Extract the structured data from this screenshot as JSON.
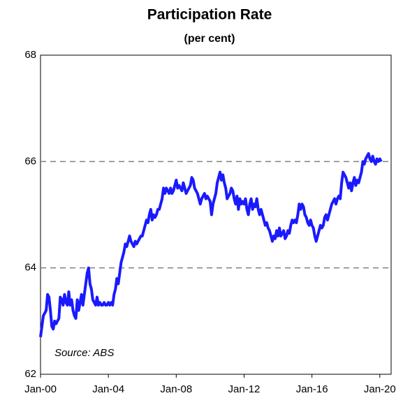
{
  "chart_data": {
    "type": "line",
    "title": "Participation Rate",
    "subtitle": "(per cent)",
    "annotation": "Source: ABS",
    "color": "#1a1aff",
    "grid": true,
    "ylim": [
      62,
      68
    ],
    "yticks": [
      62,
      64,
      66,
      68
    ],
    "xlim": [
      "2000-01",
      "2020-09"
    ],
    "xticks": [
      {
        "value": "2000-01",
        "label": "Jan-00"
      },
      {
        "value": "2004-01",
        "label": "Jan-04"
      },
      {
        "value": "2008-01",
        "label": "Jan-08"
      },
      {
        "value": "2012-01",
        "label": "Jan-12"
      },
      {
        "value": "2016-01",
        "label": "Jan-16"
      },
      {
        "value": "2020-01",
        "label": "Jan-20"
      }
    ],
    "x": [
      "2000-01",
      "2000-02",
      "2000-03",
      "2000-04",
      "2000-05",
      "2000-06",
      "2000-07",
      "2000-08",
      "2000-09",
      "2000-10",
      "2000-11",
      "2000-12",
      "2001-01",
      "2001-02",
      "2001-03",
      "2001-04",
      "2001-05",
      "2001-06",
      "2001-07",
      "2001-08",
      "2001-09",
      "2001-10",
      "2001-11",
      "2001-12",
      "2002-01",
      "2002-02",
      "2002-03",
      "2002-04",
      "2002-05",
      "2002-06",
      "2002-07",
      "2002-08",
      "2002-09",
      "2002-10",
      "2002-11",
      "2002-12",
      "2003-01",
      "2003-02",
      "2003-03",
      "2003-04",
      "2003-05",
      "2003-06",
      "2003-07",
      "2003-08",
      "2003-09",
      "2003-10",
      "2003-11",
      "2003-12",
      "2004-01",
      "2004-02",
      "2004-03",
      "2004-04",
      "2004-05",
      "2004-06",
      "2004-07",
      "2004-08",
      "2004-09",
      "2004-10",
      "2004-11",
      "2004-12",
      "2005-01",
      "2005-02",
      "2005-03",
      "2005-04",
      "2005-05",
      "2005-06",
      "2005-07",
      "2005-08",
      "2005-09",
      "2005-10",
      "2005-11",
      "2005-12",
      "2006-01",
      "2006-02",
      "2006-03",
      "2006-04",
      "2006-05",
      "2006-06",
      "2006-07",
      "2006-08",
      "2006-09",
      "2006-10",
      "2006-11",
      "2006-12",
      "2007-01",
      "2007-02",
      "2007-03",
      "2007-04",
      "2007-05",
      "2007-06",
      "2007-07",
      "2007-08",
      "2007-09",
      "2007-10",
      "2007-11",
      "2007-12",
      "2008-01",
      "2008-02",
      "2008-03",
      "2008-04",
      "2008-05",
      "2008-06",
      "2008-07",
      "2008-08",
      "2008-09",
      "2008-10",
      "2008-11",
      "2008-12",
      "2009-01",
      "2009-02",
      "2009-03",
      "2009-04",
      "2009-05",
      "2009-06",
      "2009-07",
      "2009-08",
      "2009-09",
      "2009-10",
      "2009-11",
      "2009-12",
      "2010-01",
      "2010-02",
      "2010-03",
      "2010-04",
      "2010-05",
      "2010-06",
      "2010-07",
      "2010-08",
      "2010-09",
      "2010-10",
      "2010-11",
      "2010-12",
      "2011-01",
      "2011-02",
      "2011-03",
      "2011-04",
      "2011-05",
      "2011-06",
      "2011-07",
      "2011-08",
      "2011-09",
      "2011-10",
      "2011-11",
      "2011-12",
      "2012-01",
      "2012-02",
      "2012-03",
      "2012-04",
      "2012-05",
      "2012-06",
      "2012-07",
      "2012-08",
      "2012-09",
      "2012-10",
      "2012-11",
      "2012-12",
      "2013-01",
      "2013-02",
      "2013-03",
      "2013-04",
      "2013-05",
      "2013-06",
      "2013-07",
      "2013-08",
      "2013-09",
      "2013-10",
      "2013-11",
      "2013-12",
      "2014-01",
      "2014-02",
      "2014-03",
      "2014-04",
      "2014-05",
      "2014-06",
      "2014-07",
      "2014-08",
      "2014-09",
      "2014-10",
      "2014-11",
      "2014-12",
      "2015-01",
      "2015-02",
      "2015-03",
      "2015-04",
      "2015-05",
      "2015-06",
      "2015-07",
      "2015-08",
      "2015-09",
      "2015-10",
      "2015-11",
      "2015-12",
      "2016-01",
      "2016-02",
      "2016-03",
      "2016-04",
      "2016-05",
      "2016-06",
      "2016-07",
      "2016-08",
      "2016-09",
      "2016-10",
      "2016-11",
      "2016-12",
      "2017-01",
      "2017-02",
      "2017-03",
      "2017-04",
      "2017-05",
      "2017-06",
      "2017-07",
      "2017-08",
      "2017-09",
      "2017-10",
      "2017-11",
      "2017-12",
      "2018-01",
      "2018-02",
      "2018-03",
      "2018-04",
      "2018-05",
      "2018-06",
      "2018-07",
      "2018-08",
      "2018-09",
      "2018-10",
      "2018-11",
      "2018-12",
      "2019-01",
      "2019-02",
      "2019-03",
      "2019-04",
      "2019-05",
      "2019-06",
      "2019-07",
      "2019-08",
      "2019-09",
      "2019-10",
      "2019-11",
      "2019-12",
      "2020-01",
      "2020-02"
    ],
    "values": [
      62.7,
      62.9,
      63.1,
      63.15,
      63.2,
      63.5,
      63.45,
      63.2,
      62.9,
      62.85,
      63.0,
      62.95,
      63.0,
      63.05,
      63.45,
      63.4,
      63.3,
      63.5,
      63.35,
      63.3,
      63.55,
      63.3,
      63.4,
      63.2,
      63.1,
      63.05,
      63.4,
      63.2,
      63.35,
      63.5,
      63.3,
      63.5,
      63.7,
      63.9,
      64.0,
      63.7,
      63.6,
      63.4,
      63.35,
      63.3,
      63.45,
      63.3,
      63.35,
      63.3,
      63.3,
      63.35,
      63.3,
      63.3,
      63.35,
      63.3,
      63.35,
      63.3,
      63.5,
      63.6,
      63.8,
      63.7,
      63.9,
      64.1,
      64.2,
      64.3,
      64.45,
      64.4,
      64.5,
      64.6,
      64.5,
      64.45,
      64.4,
      64.5,
      64.45,
      64.5,
      64.55,
      64.6,
      64.6,
      64.7,
      64.8,
      64.9,
      64.85,
      65.0,
      65.1,
      64.9,
      65.0,
      64.95,
      65.0,
      65.1,
      65.1,
      65.2,
      65.3,
      65.5,
      65.4,
      65.5,
      65.45,
      65.4,
      65.5,
      65.4,
      65.45,
      65.55,
      65.65,
      65.5,
      65.55,
      65.5,
      65.45,
      65.6,
      65.5,
      65.4,
      65.45,
      65.5,
      65.55,
      65.7,
      65.65,
      65.5,
      65.45,
      65.4,
      65.3,
      65.2,
      65.3,
      65.35,
      65.4,
      65.3,
      65.35,
      65.3,
      65.25,
      65.0,
      65.2,
      65.3,
      65.4,
      65.6,
      65.7,
      65.8,
      65.65,
      65.75,
      65.6,
      65.5,
      65.3,
      65.35,
      65.4,
      65.5,
      65.45,
      65.3,
      65.2,
      65.35,
      65.1,
      65.3,
      65.2,
      65.25,
      65.2,
      65.3,
      65.1,
      65.0,
      65.2,
      65.3,
      65.1,
      65.2,
      65.15,
      65.3,
      65.1,
      65.0,
      65.1,
      65.0,
      64.9,
      64.8,
      64.85,
      64.75,
      64.7,
      64.6,
      64.5,
      64.6,
      64.55,
      64.7,
      64.6,
      64.75,
      64.6,
      64.65,
      64.7,
      64.55,
      64.6,
      64.7,
      64.65,
      64.8,
      64.9,
      64.85,
      64.9,
      64.85,
      65.0,
      65.2,
      65.1,
      65.2,
      65.15,
      65.0,
      64.95,
      64.85,
      64.8,
      64.9,
      64.8,
      64.75,
      64.6,
      64.5,
      64.6,
      64.7,
      64.8,
      64.75,
      64.8,
      64.95,
      65.0,
      64.9,
      65.0,
      65.1,
      65.2,
      65.25,
      65.3,
      65.2,
      65.3,
      65.35,
      65.3,
      65.6,
      65.8,
      65.75,
      65.7,
      65.6,
      65.5,
      65.6,
      65.45,
      65.6,
      65.7,
      65.55,
      65.65,
      65.6,
      65.7,
      65.8,
      66.0,
      65.95,
      66.05,
      66.1,
      66.15,
      66.05,
      66.0,
      66.1,
      66.0,
      65.95,
      66.05,
      66.0,
      66.05,
      66.0
    ]
  }
}
